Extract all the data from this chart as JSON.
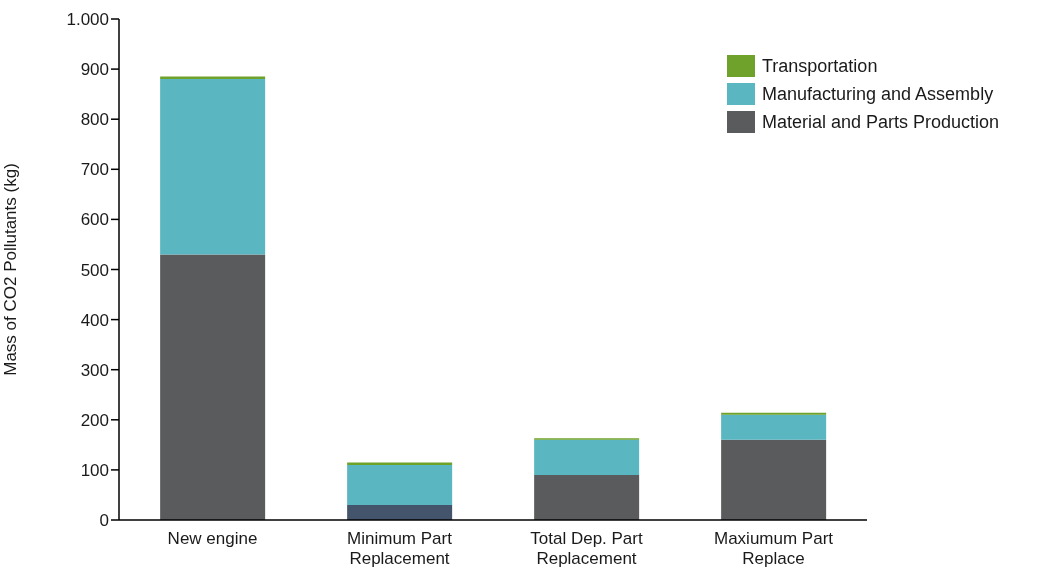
{
  "chart_data": {
    "type": "bar",
    "ylabel": "Mass of CO2 Pollutants (kg)",
    "categories": [
      "New engine",
      "Minimum Part Replacement",
      "Total Dep. Part Replacement",
      "Maxiumum Part Replace"
    ],
    "series": [
      {
        "name": "Material and Parts Production",
        "color": "#5a5b5d",
        "colors": [
          "#5a5b5d",
          "#44546a",
          "#5a5b5d",
          "#5a5b5d"
        ],
        "values": [
          530,
          30,
          90,
          160
        ]
      },
      {
        "name": "Manufacturing and Assembly",
        "color": "#5ab6c0",
        "values": [
          350,
          80,
          70,
          50
        ]
      },
      {
        "name": "Transportation",
        "color": "#6ea22a",
        "values": [
          5,
          5,
          3,
          4
        ]
      }
    ],
    "stacked": true,
    "ylim": [
      0,
      1000
    ],
    "yticks": [
      0,
      100,
      200,
      300,
      400,
      500,
      600,
      700,
      800,
      900,
      {
        "value": 1000,
        "label": "1.000"
      }
    ],
    "legend": "top right"
  }
}
